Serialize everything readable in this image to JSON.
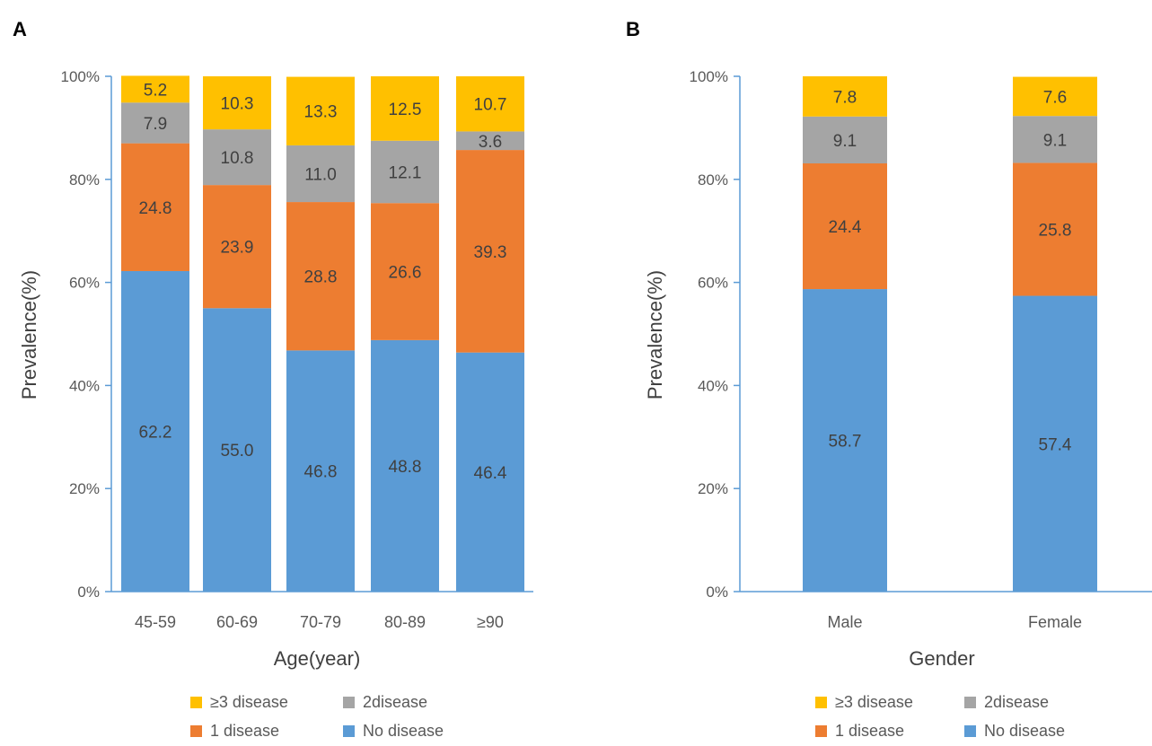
{
  "panels": [
    {
      "panel_label": "A",
      "legend_labels": [
        "≥3 disease",
        "2disease",
        "1 disease",
        "No disease"
      ]
    },
    {
      "panel_label": "B",
      "legend_labels": [
        "≥3 disease",
        "2disease",
        "1 disease",
        "No disease"
      ]
    }
  ],
  "chart_data": [
    {
      "type": "bar",
      "stacked": true,
      "title": "",
      "xlabel": "Age(year)",
      "ylabel": "Prevalence(%)",
      "ylim": [
        0,
        100
      ],
      "yticks": [
        "0%",
        "20%",
        "40%",
        "60%",
        "80%",
        "100%"
      ],
      "grid": false,
      "legend_position": "bottom",
      "categories": [
        "45-59",
        "60-69",
        "70-79",
        "80-89",
        "≥90"
      ],
      "series": [
        {
          "name": "No disease",
          "color": "#5B9BD5",
          "values": [
            62.2,
            55.0,
            46.8,
            48.8,
            46.4
          ]
        },
        {
          "name": "1 disease",
          "color": "#ED7D31",
          "values": [
            24.8,
            23.9,
            28.8,
            26.6,
            39.3
          ]
        },
        {
          "name": "2disease",
          "color": "#A5A5A5",
          "values": [
            7.9,
            10.8,
            11.0,
            12.1,
            3.6
          ]
        },
        {
          "name": "≥3 disease",
          "color": "#FFC000",
          "values": [
            5.2,
            10.3,
            13.3,
            12.5,
            10.7
          ]
        }
      ]
    },
    {
      "type": "bar",
      "stacked": true,
      "title": "",
      "xlabel": "Gender",
      "ylabel": "Prevalence(%)",
      "ylim": [
        0,
        100
      ],
      "yticks": [
        "0%",
        "20%",
        "40%",
        "60%",
        "80%",
        "100%"
      ],
      "grid": false,
      "legend_position": "bottom",
      "categories": [
        "Male",
        "Female"
      ],
      "series": [
        {
          "name": "No disease",
          "color": "#5B9BD5",
          "values": [
            58.7,
            57.4
          ]
        },
        {
          "name": "1 disease",
          "color": "#ED7D31",
          "values": [
            24.4,
            25.8
          ]
        },
        {
          "name": "2disease",
          "color": "#A5A5A5",
          "values": [
            9.1,
            9.1
          ]
        },
        {
          "name": "≥3 disease",
          "color": "#FFC000",
          "values": [
            7.8,
            7.6
          ]
        }
      ]
    }
  ]
}
